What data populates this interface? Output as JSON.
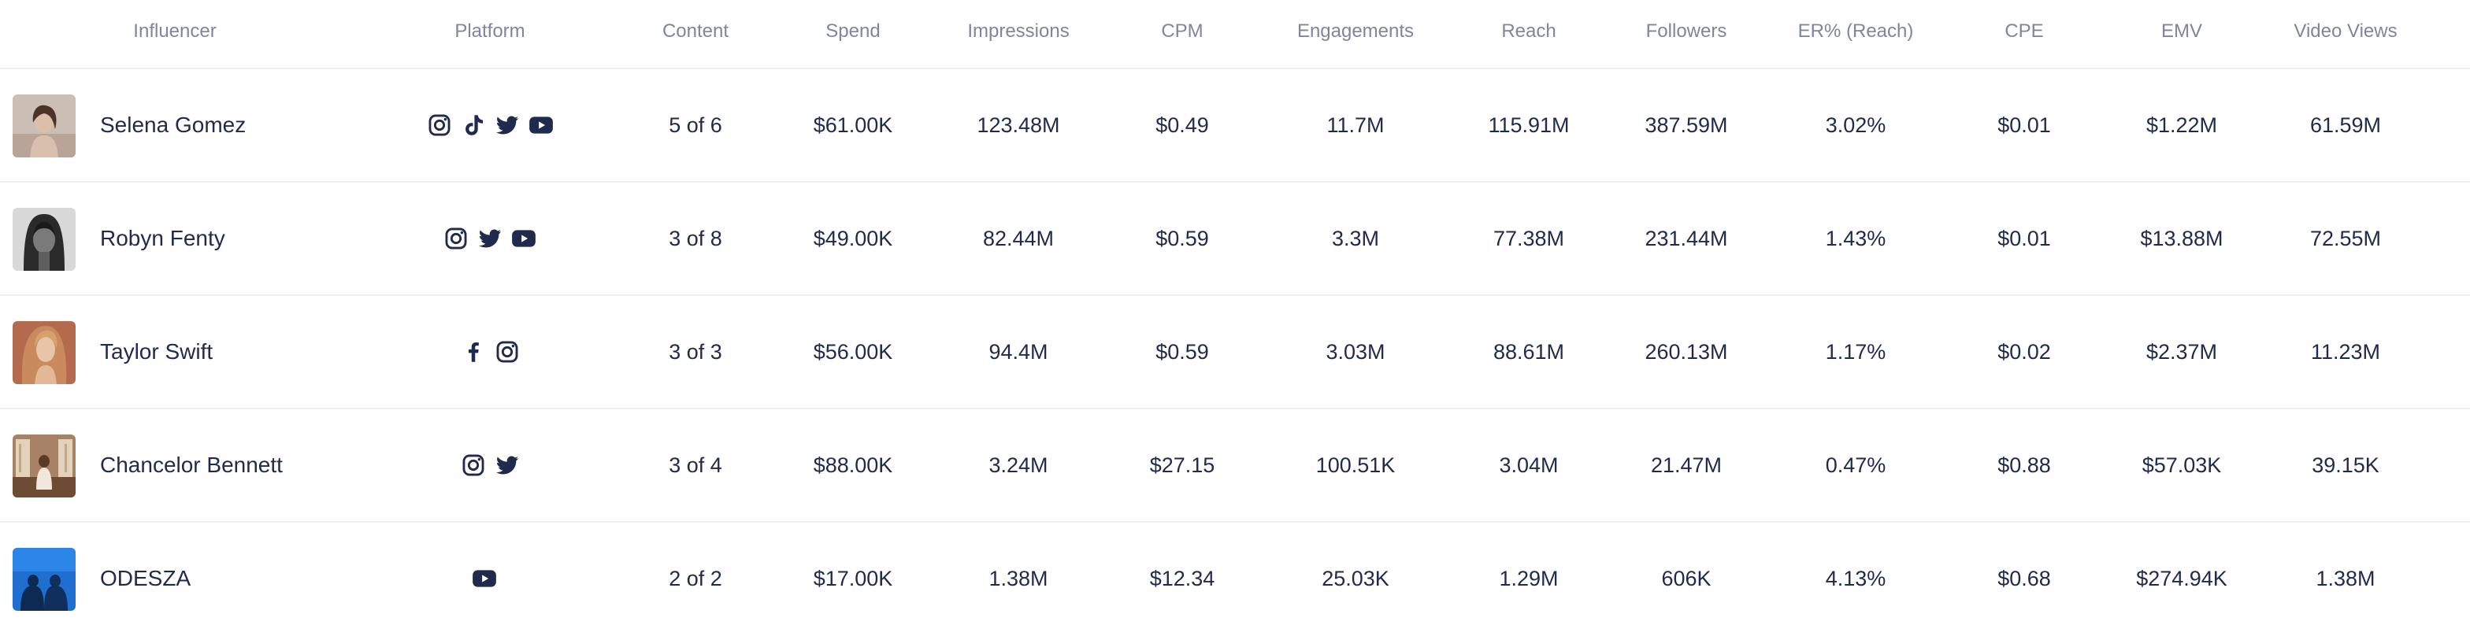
{
  "columns": {
    "influencer": "Influencer",
    "platform": "Platform",
    "content": "Content",
    "spend": "Spend",
    "impressions": "Impressions",
    "cpm": "CPM",
    "engagements": "Engagements",
    "reach": "Reach",
    "followers": "Followers",
    "er_reach": "ER% (Reach)",
    "cpe": "CPE",
    "emv": "EMV",
    "video_views": "Video Views"
  },
  "rows": [
    {
      "name": "Selena Gomez",
      "avatar": "selena-gomez-avatar",
      "platforms": [
        "instagram-icon",
        "tiktok-icon",
        "twitter-icon",
        "youtube-icon"
      ],
      "content": "5 of 6",
      "spend": "$61.00K",
      "impressions": "123.48M",
      "cpm": "$0.49",
      "engagements": "11.7M",
      "reach": "115.91M",
      "followers": "387.59M",
      "er_reach": "3.02%",
      "cpe": "$0.01",
      "emv": "$1.22M",
      "video_views": "61.59M"
    },
    {
      "name": "Robyn Fenty",
      "avatar": "robyn-fenty-avatar",
      "platforms": [
        "instagram-icon",
        "twitter-icon",
        "youtube-icon"
      ],
      "content": "3 of 8",
      "spend": "$49.00K",
      "impressions": "82.44M",
      "cpm": "$0.59",
      "engagements": "3.3M",
      "reach": "77.38M",
      "followers": "231.44M",
      "er_reach": "1.43%",
      "cpe": "$0.01",
      "emv": "$13.88M",
      "video_views": "72.55M"
    },
    {
      "name": "Taylor Swift",
      "avatar": "taylor-swift-avatar",
      "platforms": [
        "facebook-icon",
        "instagram-icon"
      ],
      "content": "3 of 3",
      "spend": "$56.00K",
      "impressions": "94.4M",
      "cpm": "$0.59",
      "engagements": "3.03M",
      "reach": "88.61M",
      "followers": "260.13M",
      "er_reach": "1.17%",
      "cpe": "$0.02",
      "emv": "$2.37M",
      "video_views": "11.23M"
    },
    {
      "name": "Chancelor Bennett",
      "avatar": "chancelor-bennett-avatar",
      "platforms": [
        "instagram-icon",
        "twitter-icon"
      ],
      "content": "3 of 4",
      "spend": "$88.00K",
      "impressions": "3.24M",
      "cpm": "$27.15",
      "engagements": "100.51K",
      "reach": "3.04M",
      "followers": "21.47M",
      "er_reach": "0.47%",
      "cpe": "$0.88",
      "emv": "$57.03K",
      "video_views": "39.15K"
    },
    {
      "name": "ODESZA",
      "avatar": "odesza-avatar",
      "platforms": [
        "youtube-icon"
      ],
      "content": "2 of 2",
      "spend": "$17.00K",
      "impressions": "1.38M",
      "cpm": "$12.34",
      "engagements": "25.03K",
      "reach": "1.29M",
      "followers": "606K",
      "er_reach": "4.13%",
      "cpe": "$0.68",
      "emv": "$274.94K",
      "video_views": "1.38M"
    }
  ],
  "colors": {
    "text": "#1f2a4d",
    "header_text": "#7f859c",
    "divider": "#eceef3",
    "icon": "#1f2a4d"
  }
}
